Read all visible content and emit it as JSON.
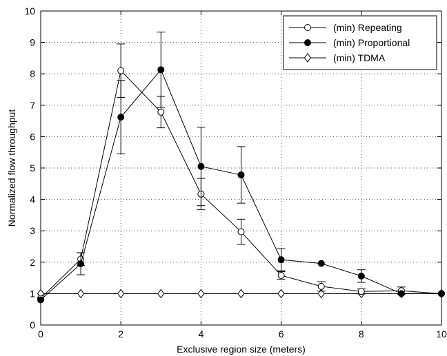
{
  "chart_data": {
    "type": "line",
    "xlabel": "Exclusive region size (meters)",
    "ylabel": "Normalized flow throughput",
    "xlim": [
      0,
      10
    ],
    "ylim": [
      0,
      10
    ],
    "xticks": [
      0,
      2,
      4,
      6,
      8,
      10
    ],
    "yticks": [
      0,
      1,
      2,
      3,
      4,
      5,
      6,
      7,
      8,
      9,
      10
    ],
    "grid": true,
    "legend_position": "top-right",
    "x": [
      0,
      1,
      2,
      3,
      4,
      5,
      6,
      7,
      8,
      9,
      10
    ],
    "series": [
      {
        "name": "(min) Repeating",
        "marker": "open-circle",
        "values": [
          0.85,
          2.1,
          8.1,
          6.78,
          4.17,
          2.97,
          1.58,
          1.23,
          1.07,
          1.09,
          1.0
        ],
        "errors": [
          0.0,
          0.2,
          0.85,
          0.5,
          0.5,
          0.4,
          0.12,
          0.15,
          0.08,
          0.12,
          0.0
        ]
      },
      {
        "name": "(min) Proportional",
        "marker": "filled-circle",
        "values": [
          0.8,
          1.95,
          6.62,
          8.13,
          5.05,
          4.78,
          2.08,
          1.96,
          1.56,
          1.0,
          1.0
        ],
        "errors": [
          0.0,
          0.35,
          1.17,
          1.2,
          1.25,
          0.9,
          0.35,
          0.0,
          0.2,
          0.0,
          0.0
        ]
      },
      {
        "name": "(min) TDMA",
        "marker": "open-diamond",
        "values": [
          1.0,
          1.0,
          1.0,
          1.0,
          1.0,
          1.0,
          1.0,
          1.0,
          1.0,
          1.0,
          1.0
        ],
        "errors": [
          0,
          0,
          0,
          0,
          0,
          0,
          0,
          0,
          0,
          0,
          0
        ]
      }
    ]
  }
}
